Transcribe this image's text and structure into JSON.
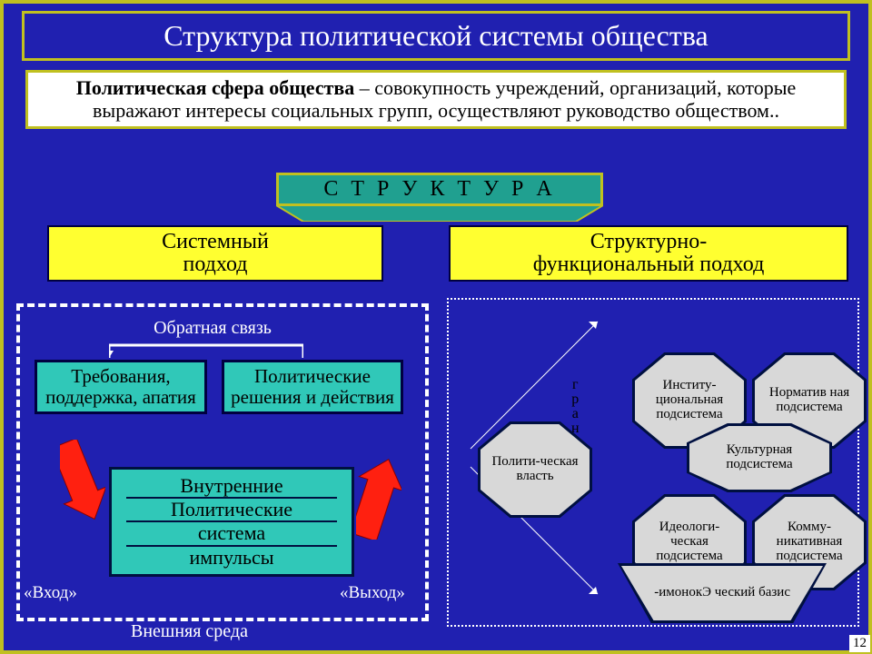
{
  "title": "Структура политической системы общества",
  "definition_lead": "Политическая сфера общества",
  "definition_rest": " – совокупность учреждений, организаций, которые выражают интересы социальных групп, осуществляют руководство обществом..",
  "structure_label": "С Т Р У К Т У Р А",
  "approach_left_l1": "Системный",
  "approach_left_l2": "подход",
  "approach_right_l1": "Структурно-",
  "approach_right_l2": "функциональный подход",
  "feedback_label": "Обратная связь",
  "box_requirements": "Требования, поддержка, апатия",
  "box_decisions": "Политические решения и действия",
  "sys_line1": "Внутренние",
  "sys_line2": "Политические",
  "sys_line3": "система",
  "sys_line4": "импульсы",
  "label_in": "«Вход»",
  "label_out": "«Выход»",
  "env_label": "Внешняя среда",
  "granica": "граница",
  "oct_power": "Полити-ческая власть",
  "oct_inst": "Институ-циональная подсистема",
  "oct_norm": "Норматив ная подсистема",
  "oct_cult": "Культурная подсистема",
  "oct_ideo": "Идеологи-ческая подсистема",
  "oct_comm": "Комму-никативная подсистема",
  "trap_econ": "-имонокЭ ческий базис",
  "page_number": "12",
  "colors": {
    "bg": "#2020b0",
    "frame": "#c0c020",
    "teal": "#30c8b8",
    "yellow": "#ffff30",
    "white": "#ffffff",
    "red": "#ff2010",
    "gray": "#d8d8d8",
    "dark": "#001040"
  }
}
